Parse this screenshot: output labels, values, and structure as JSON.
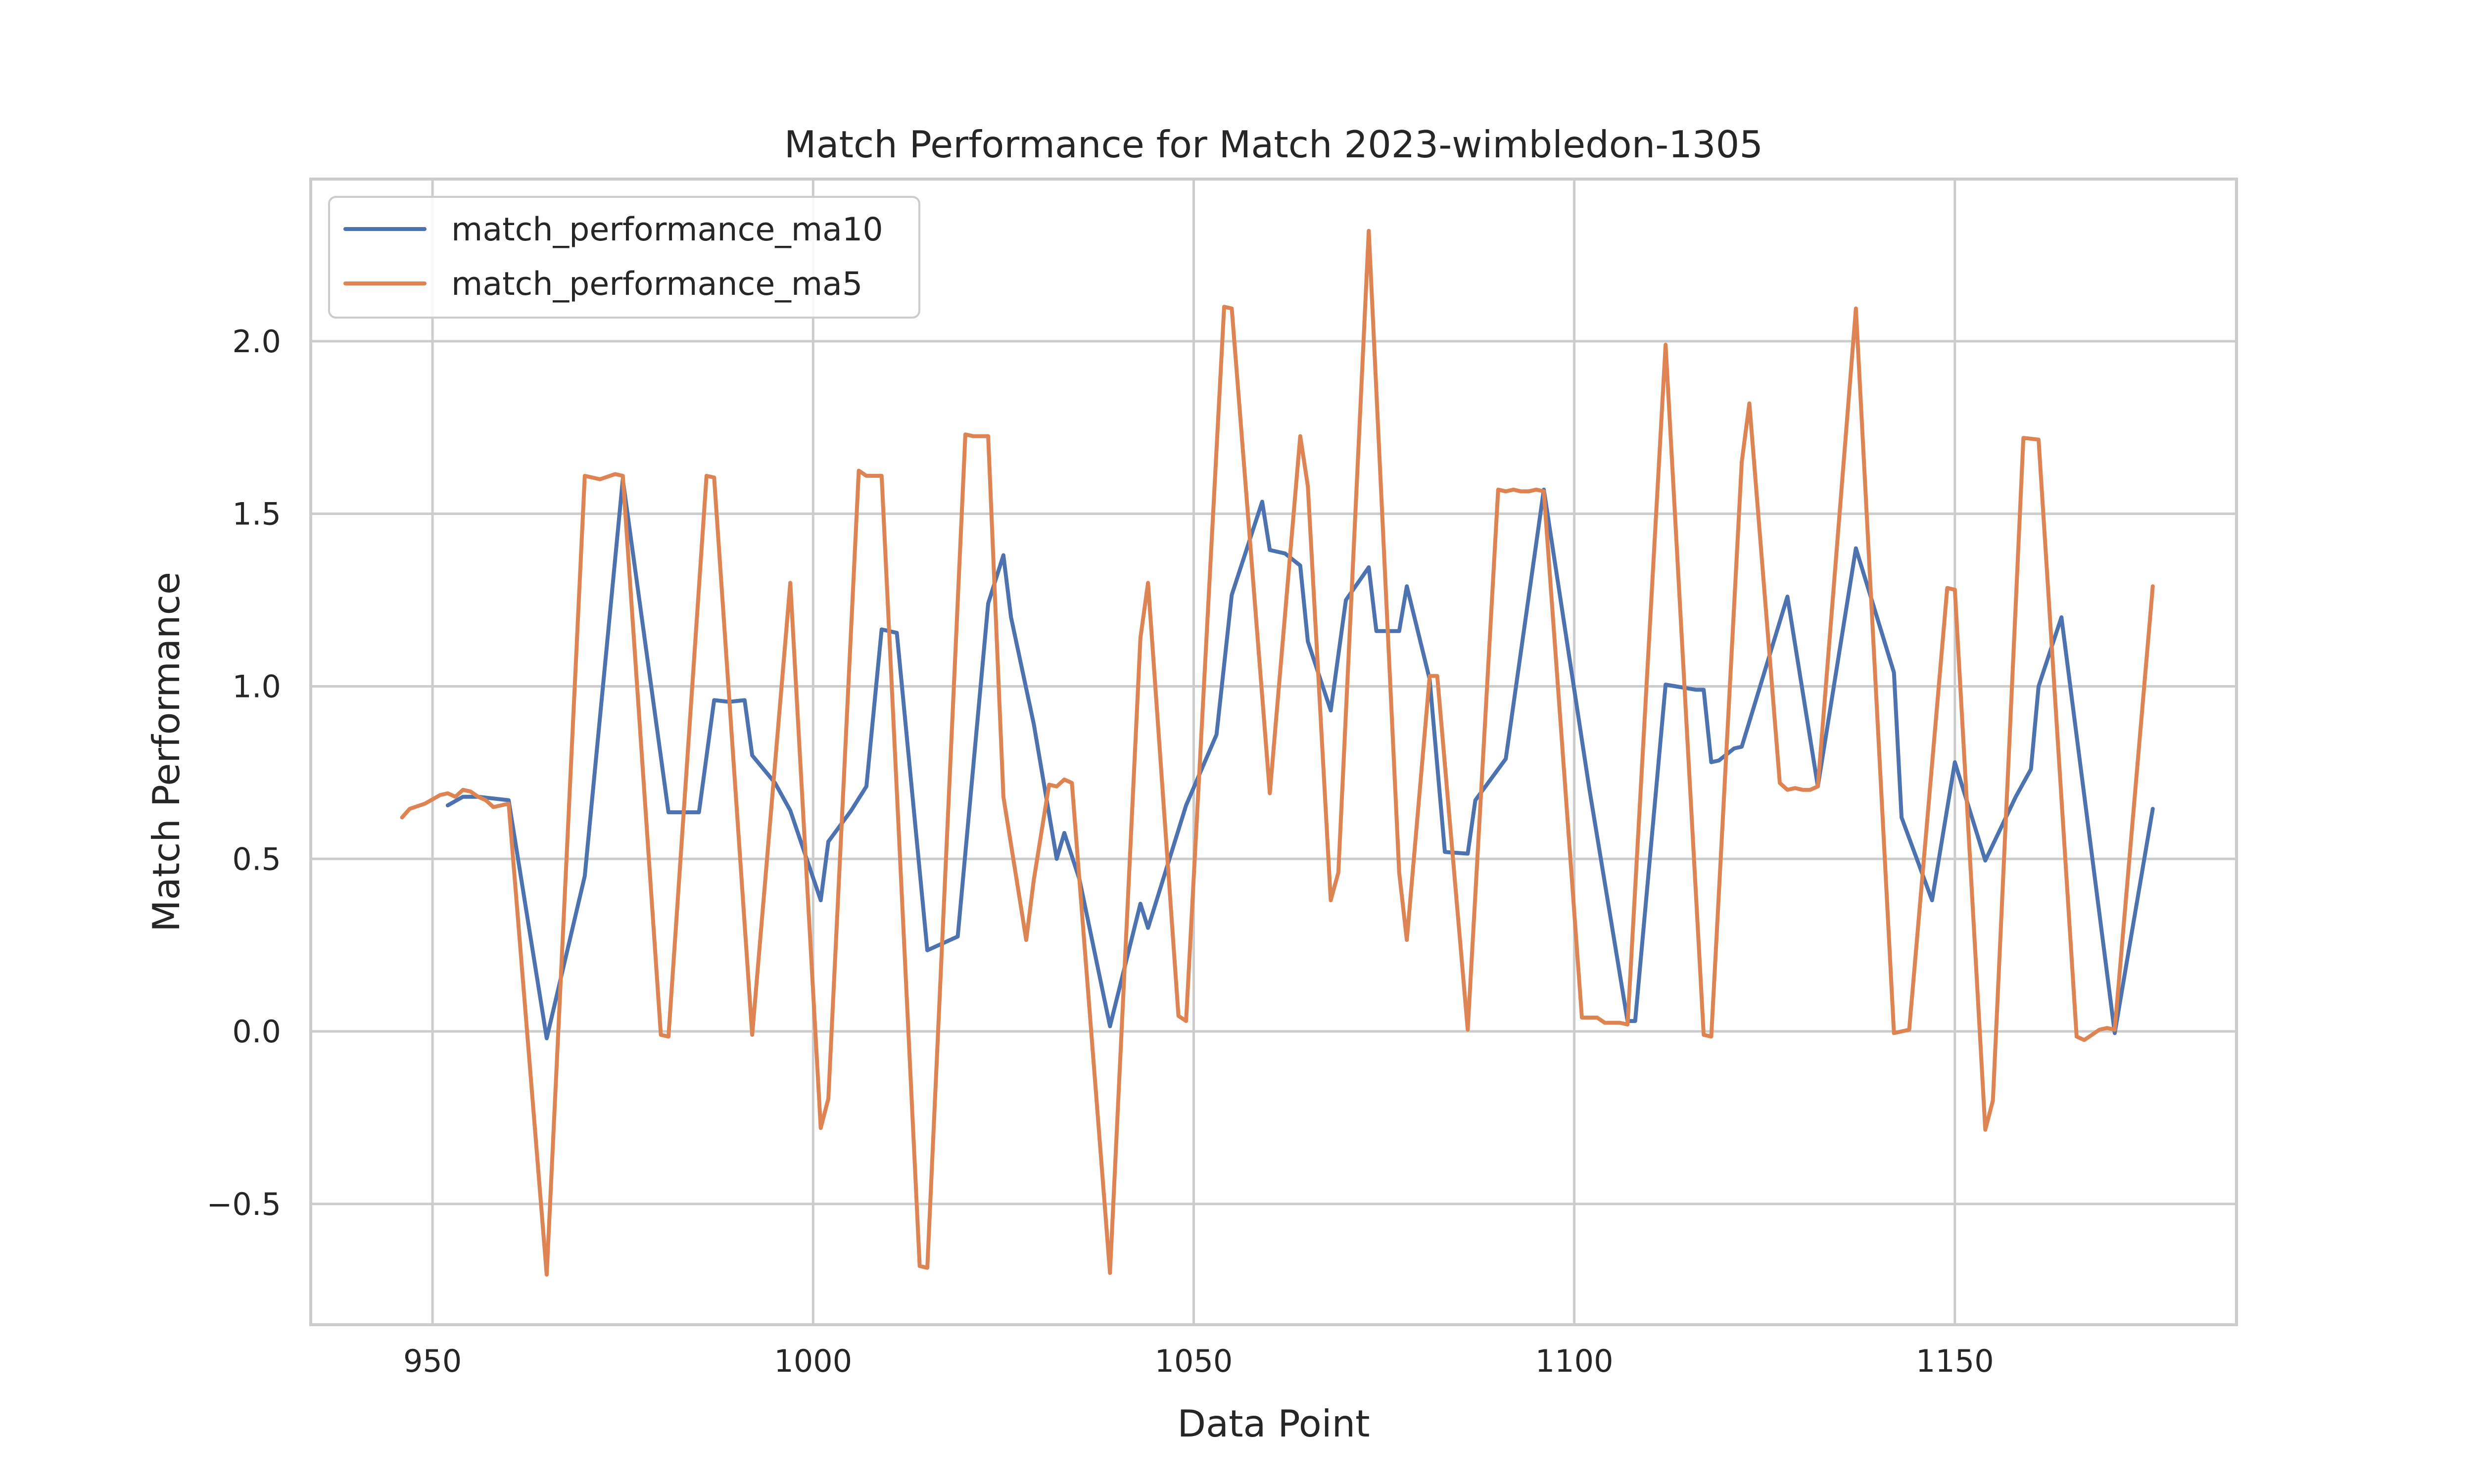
{
  "chart_data": {
    "type": "line",
    "title": "Match Performance for Match 2023-wimbledon-1305",
    "xlabel": "Data Point",
    "ylabel": "Match Performance",
    "xlim": [
      934,
      1187
    ],
    "ylim": [
      -0.85,
      2.47
    ],
    "xticks": [
      950,
      1000,
      1050,
      1100,
      1150
    ],
    "yticks": [
      -0.5,
      0.0,
      0.5,
      1.0,
      1.5,
      2.0
    ],
    "xtick_labels": [
      "950",
      "1000",
      "1050",
      "1100",
      "1150"
    ],
    "ytick_labels": [
      "−0.5",
      "0.0",
      "0.5",
      "1.0",
      "1.5",
      "2.0"
    ],
    "grid": true,
    "legend_position": "top-left",
    "series": [
      {
        "name": "match_performance_ma10",
        "color": "#4c72b0",
        "points": [
          [
            952,
            0.655
          ],
          [
            954,
            0.68
          ],
          [
            956,
            0.68
          ],
          [
            958,
            0.675
          ],
          [
            960,
            0.67
          ],
          [
            965,
            -0.02
          ],
          [
            970,
            0.45
          ],
          [
            975,
            1.6
          ],
          [
            981,
            0.635
          ],
          [
            985,
            0.635
          ],
          [
            987,
            0.96
          ],
          [
            989,
            0.955
          ],
          [
            991,
            0.96
          ],
          [
            992,
            0.8
          ],
          [
            995,
            0.72
          ],
          [
            997,
            0.64
          ],
          [
            1001,
            0.38
          ],
          [
            1002,
            0.55
          ],
          [
            1005,
            0.64
          ],
          [
            1007,
            0.71
          ],
          [
            1009,
            1.165
          ],
          [
            1011,
            1.155
          ],
          [
            1015,
            0.235
          ],
          [
            1019,
            0.275
          ],
          [
            1023,
            1.24
          ],
          [
            1025,
            1.38
          ],
          [
            1026,
            1.2
          ],
          [
            1029,
            0.89
          ],
          [
            1032,
            0.5
          ],
          [
            1033,
            0.575
          ],
          [
            1035,
            0.44
          ],
          [
            1039,
            0.015
          ],
          [
            1043,
            0.37
          ],
          [
            1044,
            0.3
          ],
          [
            1049,
            0.655
          ],
          [
            1053,
            0.86
          ],
          [
            1055,
            1.265
          ],
          [
            1059,
            1.535
          ],
          [
            1060,
            1.395
          ],
          [
            1062,
            1.385
          ],
          [
            1064,
            1.35
          ],
          [
            1065,
            1.13
          ],
          [
            1068,
            0.93
          ],
          [
            1070,
            1.25
          ],
          [
            1073,
            1.345
          ],
          [
            1074,
            1.16
          ],
          [
            1077,
            1.16
          ],
          [
            1078,
            1.29
          ],
          [
            1081,
            1.02
          ],
          [
            1083,
            0.52
          ],
          [
            1086,
            0.515
          ],
          [
            1087,
            0.67
          ],
          [
            1091,
            0.79
          ],
          [
            1096,
            1.57
          ],
          [
            1102,
            0.7
          ],
          [
            1107,
            0.03
          ],
          [
            1108,
            0.03
          ],
          [
            1112,
            1.005
          ],
          [
            1116,
            0.99
          ],
          [
            1117,
            0.99
          ],
          [
            1118,
            0.78
          ],
          [
            1119,
            0.785
          ],
          [
            1121,
            0.82
          ],
          [
            1122,
            0.825
          ],
          [
            1128,
            1.26
          ],
          [
            1132,
            0.71
          ],
          [
            1137,
            1.4
          ],
          [
            1142,
            1.04
          ],
          [
            1143,
            0.62
          ],
          [
            1147,
            0.38
          ],
          [
            1150,
            0.78
          ],
          [
            1154,
            0.495
          ],
          [
            1158,
            0.68
          ],
          [
            1160,
            0.76
          ],
          [
            1161,
            1.0
          ],
          [
            1164,
            1.2
          ],
          [
            1171,
            -0.005
          ],
          [
            1176,
            0.645
          ]
        ]
      },
      {
        "name": "match_performance_ma5",
        "color": "#dd8452",
        "points": [
          [
            946,
            0.62
          ],
          [
            947,
            0.645
          ],
          [
            949,
            0.66
          ],
          [
            951,
            0.685
          ],
          [
            952,
            0.69
          ],
          [
            953,
            0.68
          ],
          [
            954,
            0.7
          ],
          [
            955,
            0.695
          ],
          [
            956,
            0.68
          ],
          [
            957,
            0.67
          ],
          [
            958,
            0.65
          ],
          [
            959,
            0.655
          ],
          [
            960,
            0.66
          ],
          [
            965,
            -0.705
          ],
          [
            970,
            1.61
          ],
          [
            972,
            1.6
          ],
          [
            974,
            1.615
          ],
          [
            975,
            1.61
          ],
          [
            980,
            -0.01
          ],
          [
            981,
            -0.015
          ],
          [
            986,
            1.61
          ],
          [
            987,
            1.605
          ],
          [
            992,
            -0.01
          ],
          [
            997,
            1.3
          ],
          [
            1001,
            -0.28
          ],
          [
            1002,
            -0.195
          ],
          [
            1006,
            1.625
          ],
          [
            1007,
            1.61
          ],
          [
            1009,
            1.61
          ],
          [
            1014,
            -0.68
          ],
          [
            1015,
            -0.685
          ],
          [
            1020,
            1.73
          ],
          [
            1021,
            1.725
          ],
          [
            1023,
            1.725
          ],
          [
            1025,
            0.68
          ],
          [
            1028,
            0.265
          ],
          [
            1029,
            0.44
          ],
          [
            1031,
            0.715
          ],
          [
            1032,
            0.71
          ],
          [
            1033,
            0.73
          ],
          [
            1034,
            0.72
          ],
          [
            1039,
            -0.7
          ],
          [
            1043,
            1.14
          ],
          [
            1044,
            1.3
          ],
          [
            1048,
            0.045
          ],
          [
            1049,
            0.03
          ],
          [
            1054,
            2.1
          ],
          [
            1055,
            2.095
          ],
          [
            1060,
            0.69
          ],
          [
            1064,
            1.725
          ],
          [
            1065,
            1.58
          ],
          [
            1068,
            0.38
          ],
          [
            1069,
            0.46
          ],
          [
            1073,
            2.32
          ],
          [
            1077,
            0.46
          ],
          [
            1078,
            0.265
          ],
          [
            1081,
            1.03
          ],
          [
            1082,
            1.03
          ],
          [
            1086,
            0.005
          ],
          [
            1090,
            1.57
          ],
          [
            1091,
            1.565
          ],
          [
            1092,
            1.57
          ],
          [
            1093,
            1.565
          ],
          [
            1094,
            1.565
          ],
          [
            1095,
            1.57
          ],
          [
            1096,
            1.565
          ],
          [
            1101,
            0.04
          ],
          [
            1102,
            0.04
          ],
          [
            1103,
            0.04
          ],
          [
            1104,
            0.025
          ],
          [
            1105,
            0.025
          ],
          [
            1106,
            0.025
          ],
          [
            1107,
            0.02
          ],
          [
            1112,
            1.99
          ],
          [
            1117,
            -0.01
          ],
          [
            1118,
            -0.015
          ],
          [
            1122,
            1.65
          ],
          [
            1123,
            1.82
          ],
          [
            1127,
            0.72
          ],
          [
            1128,
            0.7
          ],
          [
            1129,
            0.705
          ],
          [
            1130,
            0.7
          ],
          [
            1131,
            0.7
          ],
          [
            1132,
            0.71
          ],
          [
            1137,
            2.095
          ],
          [
            1142,
            -0.005
          ],
          [
            1144,
            0.005
          ],
          [
            1149,
            1.285
          ],
          [
            1150,
            1.28
          ],
          [
            1154,
            -0.285
          ],
          [
            1155,
            -0.2
          ],
          [
            1159,
            1.72
          ],
          [
            1161,
            1.715
          ],
          [
            1166,
            -0.015
          ],
          [
            1167,
            -0.025
          ],
          [
            1169,
            0.005
          ],
          [
            1170,
            0.01
          ],
          [
            1171,
            0.005
          ],
          [
            1176,
            1.29
          ]
        ]
      }
    ]
  }
}
